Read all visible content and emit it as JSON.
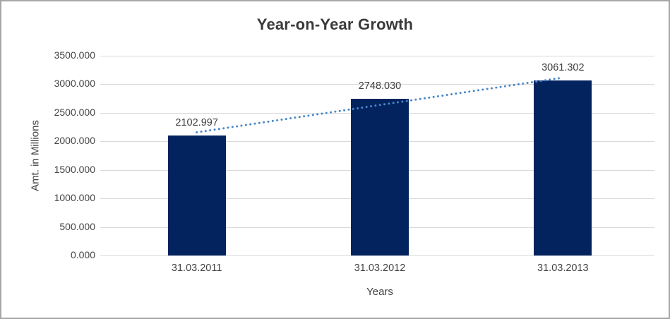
{
  "chart_data": {
    "type": "bar",
    "title": "Year-on-Year Growth",
    "xlabel": "Years",
    "ylabel": "Amt. in Millions",
    "categories": [
      "31.03.2011",
      "31.03.2012",
      "31.03.2013"
    ],
    "values": [
      2102.997,
      2748.03,
      3061.302
    ],
    "data_labels": [
      "2102.997",
      "2748.030",
      "3061.302"
    ],
    "ylim": [
      0,
      3500
    ],
    "ytick_step": 500,
    "ytick_labels": [
      "0.000",
      "500.000",
      "1000.000",
      "1500.000",
      "2000.000",
      "2500.000",
      "3000.000",
      "3500.000"
    ],
    "grid": true,
    "legend": "none",
    "trendline": {
      "type": "linear",
      "style": "dotted",
      "values_at_ends": [
        2158.3,
        3116.6
      ]
    },
    "colors": {
      "bar": "#03235f",
      "trendline": "#4a86c8",
      "gridline": "#d9d9d9",
      "text": "#404040",
      "frame_border": "#a6a6a6",
      "background": "#ffffff"
    }
  }
}
